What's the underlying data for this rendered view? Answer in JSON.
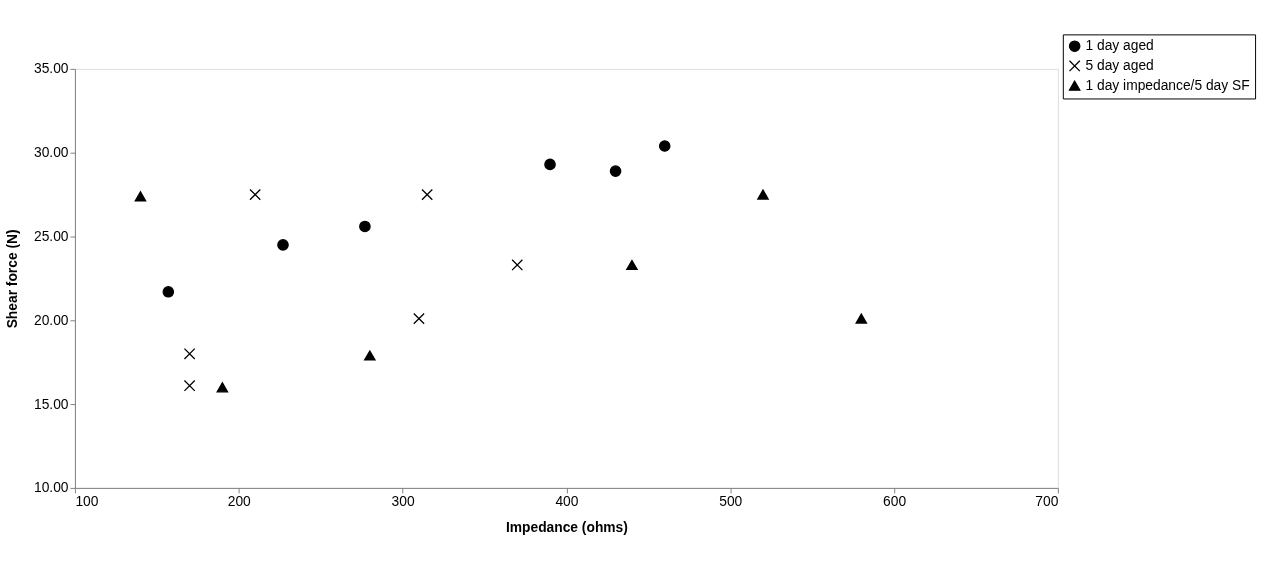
{
  "chart_data": {
    "type": "scatter",
    "xlabel": "Impedance (ohms)",
    "ylabel": "Shear force (N)",
    "xlim": [
      100,
      700
    ],
    "xticks": [
      100,
      200,
      300,
      400,
      500,
      600,
      700
    ],
    "ylim": [
      10,
      35
    ],
    "yticks": [
      {
        "value": 10,
        "label": "10.00"
      },
      {
        "value": 15,
        "label": "15.00"
      },
      {
        "value": 20,
        "label": "20.00"
      },
      {
        "value": 25,
        "label": "25.00"
      },
      {
        "value": 30,
        "label": "30.00"
      },
      {
        "value": 35,
        "label": "35.00"
      }
    ],
    "grid": false,
    "legend": "top right",
    "series": [
      {
        "name": "1 day aged",
        "color": "#000000",
        "marker": "circle",
        "x": [
          157,
          227,
          277,
          390,
          430,
          460
        ],
        "values": [
          21.7,
          24.5,
          25.6,
          29.3,
          28.9,
          30.4
        ]
      },
      {
        "name": "5 day aged",
        "color": "#000000",
        "marker": "cross",
        "x": [
          170,
          170,
          210,
          310,
          315,
          370
        ],
        "values": [
          18.0,
          16.1,
          27.5,
          20.1,
          27.5,
          23.3
        ]
      },
      {
        "name": "1 day impedance/5 day SF",
        "color": "#000000",
        "marker": "triangle",
        "x": [
          140,
          190,
          280,
          440,
          520,
          580
        ],
        "values": [
          27.4,
          16.0,
          17.9,
          23.3,
          27.5,
          20.1
        ]
      }
    ]
  }
}
